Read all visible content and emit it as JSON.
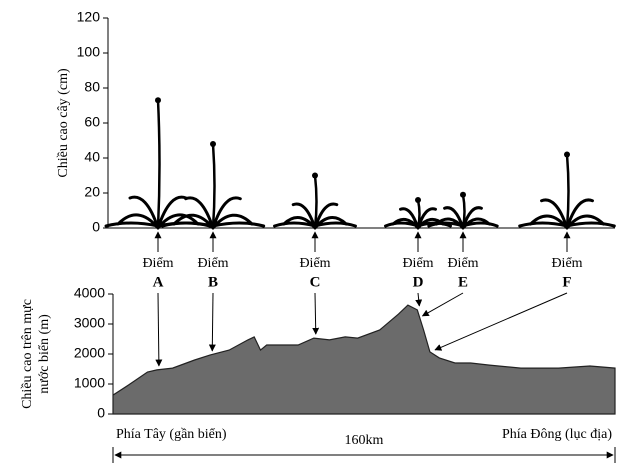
{
  "chart_data": [
    {
      "type": "plant",
      "y_label": "Chiều cao cây (cm)",
      "ylim": [
        0,
        120
      ],
      "yticks": [
        0,
        20,
        40,
        60,
        80,
        100,
        120
      ],
      "point_label": "Điểm",
      "categories": [
        "A",
        "B",
        "C",
        "D",
        "E",
        "F"
      ],
      "values": [
        73,
        48,
        30,
        16,
        19,
        42
      ]
    },
    {
      "type": "area",
      "y_label": [
        "Chiều cao trên mực",
        "nước biển (m)"
      ],
      "ylim": [
        0,
        4000
      ],
      "yticks": [
        0,
        1000,
        2000,
        3000,
        4000
      ],
      "xlim": [
        0,
        160
      ],
      "x": [
        0,
        5,
        11,
        14,
        19,
        26,
        31,
        37,
        43,
        45,
        47,
        49,
        59,
        64,
        69,
        74,
        78,
        85,
        91,
        94,
        97,
        99,
        101,
        104,
        109,
        114,
        120,
        130,
        142,
        152,
        160
      ],
      "values": [
        630,
        970,
        1400,
        1470,
        1530,
        1800,
        1970,
        2130,
        2470,
        2570,
        2130,
        2300,
        2300,
        2530,
        2470,
        2570,
        2530,
        2800,
        3330,
        3630,
        3470,
        2800,
        2070,
        1870,
        1700,
        1700,
        1630,
        1530,
        1530,
        1600,
        1530
      ],
      "color": "#6b6b6b",
      "point_x": [
        14,
        31,
        64,
        97,
        98,
        102
      ],
      "west_label": "Phía Tây (gần biển)",
      "east_label": "Phía Đông (lục địa)",
      "distance_label": "160km"
    }
  ]
}
